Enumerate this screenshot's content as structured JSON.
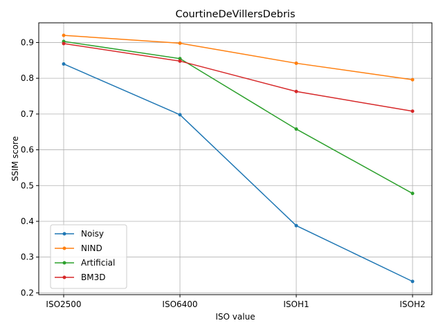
{
  "chart_data": {
    "type": "line",
    "title": "CourtineDeVillersDebris",
    "xlabel": "ISO value",
    "ylabel": "SSIM score",
    "categories": [
      "ISO2500",
      "ISO6400",
      "ISOH1",
      "ISOH2"
    ],
    "yticks": [
      "0.2",
      "0.3",
      "0.4",
      "0.5",
      "0.6",
      "0.7",
      "0.8",
      "0.9"
    ],
    "ylim": [
      0.195,
      0.955
    ],
    "grid": true,
    "legend_position": "lower-left",
    "series": [
      {
        "name": "Noisy",
        "color": "#1f77b4",
        "values": [
          0.84,
          0.698,
          0.388,
          0.232
        ]
      },
      {
        "name": "NIND",
        "color": "#ff7f0e",
        "values": [
          0.92,
          0.898,
          0.842,
          0.796
        ]
      },
      {
        "name": "Artificial",
        "color": "#2ca02c",
        "values": [
          0.903,
          0.855,
          0.658,
          0.478
        ]
      },
      {
        "name": "BM3D",
        "color": "#d62728",
        "values": [
          0.897,
          0.848,
          0.763,
          0.708
        ]
      }
    ]
  }
}
